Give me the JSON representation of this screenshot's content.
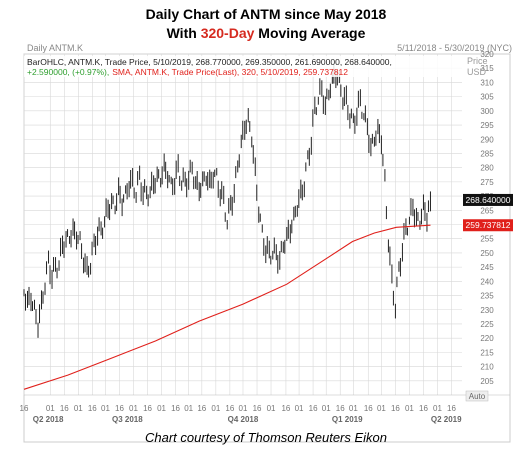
{
  "title_line1": "Daily Chart of ANTM since May 2018",
  "title_line2_pre": "With ",
  "title_line2_highlight": "320-Day",
  "title_line2_post": " Moving Average",
  "footer": "Chart courtesy of Thomson Reuters Eikon",
  "panel": {
    "name": "Daily ANTM.K",
    "date_range": "5/11/2018 - 5/30/2019 (NYC)",
    "legend_line1": "BarOHLC, ANTM.K, Trade Price, 5/10/2019, 268.770000, 269.350000, 261.690000, 268.640000,",
    "legend_line2_change": "+2.590000, (+0.97%),",
    "legend_line2_sma": "SMA, ANTM.K, Trade Price(Last), 320, 5/10/2019, 259.737812",
    "price_label": "Price",
    "usd_label": "USD",
    "auto_label": "Auto",
    "last_price_tag": "268.640000",
    "sma_tag": "259.737812"
  },
  "colors": {
    "price_bars": "#222222",
    "sma_line": "#e0201b",
    "change_text": "#2e9e2e",
    "highlight": "#d62b20",
    "grid": "#d8d8d8"
  },
  "chart_data": {
    "type": "line",
    "ylim": [
      200,
      320
    ],
    "y_ticks": [
      205,
      210,
      215,
      220,
      225,
      230,
      235,
      240,
      245,
      250,
      255,
      260,
      265,
      270,
      275,
      280,
      285,
      290,
      295,
      300,
      305,
      310,
      315,
      320
    ],
    "x_ticks": [
      {
        "label": "16",
        "t": 0.0
      },
      {
        "label": "01",
        "t": 0.06
      },
      {
        "label": "16",
        "t": 0.092
      },
      {
        "label": "01",
        "t": 0.124
      },
      {
        "label": "16",
        "t": 0.156
      },
      {
        "label": "01",
        "t": 0.186
      },
      {
        "label": "16",
        "t": 0.218
      },
      {
        "label": "01",
        "t": 0.25
      },
      {
        "label": "16",
        "t": 0.282
      },
      {
        "label": "01",
        "t": 0.314
      },
      {
        "label": "16",
        "t": 0.346
      },
      {
        "label": "01",
        "t": 0.376
      },
      {
        "label": "16",
        "t": 0.406
      },
      {
        "label": "01",
        "t": 0.438
      },
      {
        "label": "16",
        "t": 0.47
      },
      {
        "label": "01",
        "t": 0.5
      },
      {
        "label": "16",
        "t": 0.532
      },
      {
        "label": "01",
        "t": 0.564
      },
      {
        "label": "16",
        "t": 0.598
      },
      {
        "label": "01",
        "t": 0.628
      },
      {
        "label": "16",
        "t": 0.66
      },
      {
        "label": "01",
        "t": 0.69
      },
      {
        "label": "16",
        "t": 0.722
      },
      {
        "label": "01",
        "t": 0.752
      },
      {
        "label": "16",
        "t": 0.786
      },
      {
        "label": "01",
        "t": 0.816
      },
      {
        "label": "16",
        "t": 0.848
      },
      {
        "label": "01",
        "t": 0.88
      },
      {
        "label": "16",
        "t": 0.912
      },
      {
        "label": "01",
        "t": 0.944
      },
      {
        "label": "16",
        "t": 0.976
      }
    ],
    "quarter_labels": [
      {
        "label": "Q2 2018",
        "t": 0.055
      },
      {
        "label": "Q3 2018",
        "t": 0.236
      },
      {
        "label": "Q4 2018",
        "t": 0.5
      },
      {
        "label": "Q1 2019",
        "t": 0.738
      },
      {
        "label": "Q2 2019",
        "t": 0.964
      }
    ],
    "series": [
      {
        "name": "BarOHLC, ANTM.K",
        "style": "ohlc",
        "points": [
          [
            0.0,
            236
          ],
          [
            0.008,
            233
          ],
          [
            0.016,
            234
          ],
          [
            0.024,
            230
          ],
          [
            0.032,
            225
          ],
          [
            0.04,
            231
          ],
          [
            0.048,
            240
          ],
          [
            0.056,
            246
          ],
          [
            0.064,
            243
          ],
          [
            0.072,
            244
          ],
          [
            0.08,
            247
          ],
          [
            0.088,
            252
          ],
          [
            0.096,
            255
          ],
          [
            0.104,
            255
          ],
          [
            0.112,
            258
          ],
          [
            0.12,
            256
          ],
          [
            0.128,
            254
          ],
          [
            0.136,
            248
          ],
          [
            0.144,
            243
          ],
          [
            0.152,
            247
          ],
          [
            0.16,
            252
          ],
          [
            0.168,
            258
          ],
          [
            0.176,
            257
          ],
          [
            0.184,
            262
          ],
          [
            0.192,
            265
          ],
          [
            0.2,
            268
          ],
          [
            0.208,
            266
          ],
          [
            0.216,
            272
          ],
          [
            0.224,
            268
          ],
          [
            0.232,
            270
          ],
          [
            0.24,
            275
          ],
          [
            0.248,
            274
          ],
          [
            0.256,
            272
          ],
          [
            0.264,
            276
          ],
          [
            0.272,
            272
          ],
          [
            0.28,
            270
          ],
          [
            0.288,
            272
          ],
          [
            0.296,
            274
          ],
          [
            0.304,
            277
          ],
          [
            0.312,
            276
          ],
          [
            0.32,
            280
          ],
          [
            0.328,
            278
          ],
          [
            0.336,
            273
          ],
          [
            0.344,
            276
          ],
          [
            0.352,
            279
          ],
          [
            0.36,
            276
          ],
          [
            0.368,
            274
          ],
          [
            0.376,
            277
          ],
          [
            0.384,
            279
          ],
          [
            0.392,
            275
          ],
          [
            0.4,
            272
          ],
          [
            0.408,
            275
          ],
          [
            0.416,
            277
          ],
          [
            0.424,
            274
          ],
          [
            0.432,
            278
          ],
          [
            0.44,
            276
          ],
          [
            0.448,
            272
          ],
          [
            0.456,
            268
          ],
          [
            0.464,
            262
          ],
          [
            0.472,
            266
          ],
          [
            0.48,
            272
          ],
          [
            0.488,
            280
          ],
          [
            0.496,
            289
          ],
          [
            0.504,
            294
          ],
          [
            0.512,
            297
          ],
          [
            0.52,
            291
          ],
          [
            0.528,
            278
          ],
          [
            0.536,
            266
          ],
          [
            0.544,
            256
          ],
          [
            0.552,
            252
          ],
          [
            0.56,
            249
          ],
          [
            0.568,
            251
          ],
          [
            0.576,
            249
          ],
          [
            0.584,
            248
          ],
          [
            0.592,
            252
          ],
          [
            0.6,
            256
          ],
          [
            0.608,
            258
          ],
          [
            0.616,
            262
          ],
          [
            0.624,
            267
          ],
          [
            0.632,
            270
          ],
          [
            0.64,
            275
          ],
          [
            0.648,
            282
          ],
          [
            0.656,
            290
          ],
          [
            0.664,
            300
          ],
          [
            0.672,
            305
          ],
          [
            0.68,
            307
          ],
          [
            0.688,
            302
          ],
          [
            0.696,
            306
          ],
          [
            0.704,
            311
          ],
          [
            0.712,
            313
          ],
          [
            0.72,
            310
          ],
          [
            0.728,
            305
          ],
          [
            0.736,
            303
          ],
          [
            0.744,
            299
          ],
          [
            0.752,
            295
          ],
          [
            0.76,
            300
          ],
          [
            0.768,
            303
          ],
          [
            0.776,
            299
          ],
          [
            0.784,
            294
          ],
          [
            0.792,
            287
          ],
          [
            0.8,
            290
          ],
          [
            0.808,
            293
          ],
          [
            0.816,
            290
          ],
          [
            0.824,
            275
          ],
          [
            0.832,
            255
          ],
          [
            0.84,
            240
          ],
          [
            0.848,
            232
          ],
          [
            0.856,
            243
          ],
          [
            0.864,
            252
          ],
          [
            0.872,
            258
          ],
          [
            0.88,
            262
          ],
          [
            0.888,
            266
          ],
          [
            0.896,
            262
          ],
          [
            0.904,
            261
          ],
          [
            0.912,
            266
          ],
          [
            0.92,
            263
          ],
          [
            0.928,
            268.64
          ]
        ]
      },
      {
        "name": "SMA, ANTM.K, Trade Price(Last), 320",
        "style": "line",
        "points": [
          [
            0.0,
            202
          ],
          [
            0.1,
            207
          ],
          [
            0.2,
            213
          ],
          [
            0.3,
            219
          ],
          [
            0.4,
            226
          ],
          [
            0.5,
            232
          ],
          [
            0.6,
            239
          ],
          [
            0.7,
            249
          ],
          [
            0.75,
            254
          ],
          [
            0.8,
            257
          ],
          [
            0.85,
            259
          ],
          [
            0.9,
            259.5
          ],
          [
            0.928,
            259.737812
          ]
        ]
      }
    ]
  }
}
